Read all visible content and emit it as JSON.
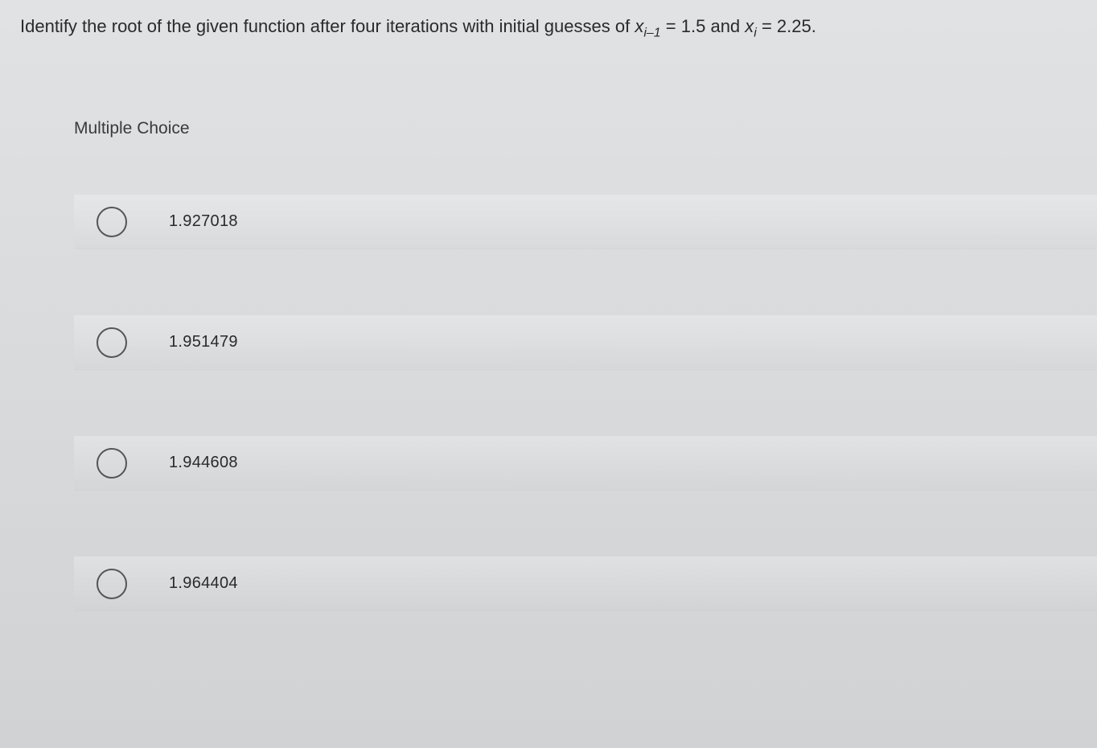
{
  "question": {
    "prefix": "Identify the root of the given function after four iterations with initial guesses of ",
    "var1": "x",
    "sub1": "i–1",
    "eq1": " = 1.5 and ",
    "var2": "x",
    "sub2": "i",
    "eq2": " = 2.25."
  },
  "mcLabel": "Multiple Choice",
  "options": [
    {
      "value": "1.927018"
    },
    {
      "value": "1.951479"
    },
    {
      "value": "1.944608"
    },
    {
      "value": "1.964404"
    }
  ],
  "colors": {
    "text": "#2a2a2a",
    "radioBorder": "#555555",
    "bgTop": "#e0e2e4",
    "bgBottom": "#d0d2d4"
  }
}
